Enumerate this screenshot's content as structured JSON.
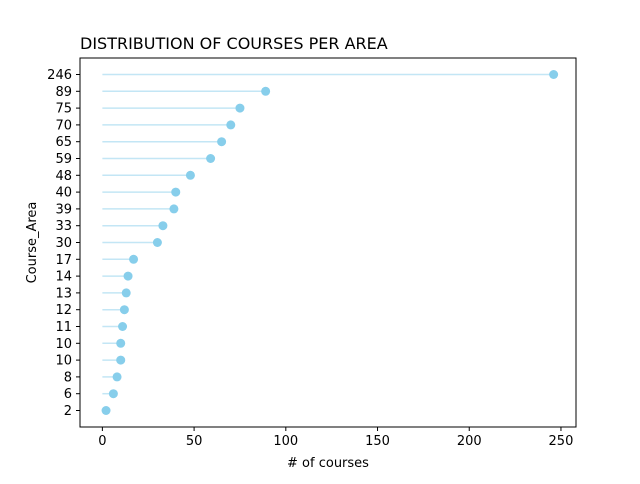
{
  "chart_data": {
    "type": "lollipop",
    "orientation": "horizontal",
    "title": "DISTRIBUTION OF COURSES PER AREA",
    "xlabel": "# of courses",
    "ylabel": "Course_Area",
    "xlim": [
      -12.2,
      258.2
    ],
    "xticks": [
      "0",
      "50",
      "100",
      "150",
      "200",
      "250"
    ],
    "categories": [
      "2",
      "6",
      "8",
      "10",
      "10",
      "11",
      "12",
      "13",
      "14",
      "17",
      "30",
      "33",
      "39",
      "40",
      "48",
      "59",
      "65",
      "70",
      "75",
      "89",
      "246"
    ],
    "values": [
      2,
      6,
      8,
      10,
      10,
      11,
      12,
      13,
      14,
      17,
      30,
      33,
      39,
      40,
      48,
      59,
      65,
      70,
      75,
      89,
      246
    ],
    "stem_start": 0,
    "grid": false,
    "legend": "none",
    "colors": {
      "marker": "#87ceeb",
      "stem": "#87ceeb"
    }
  }
}
